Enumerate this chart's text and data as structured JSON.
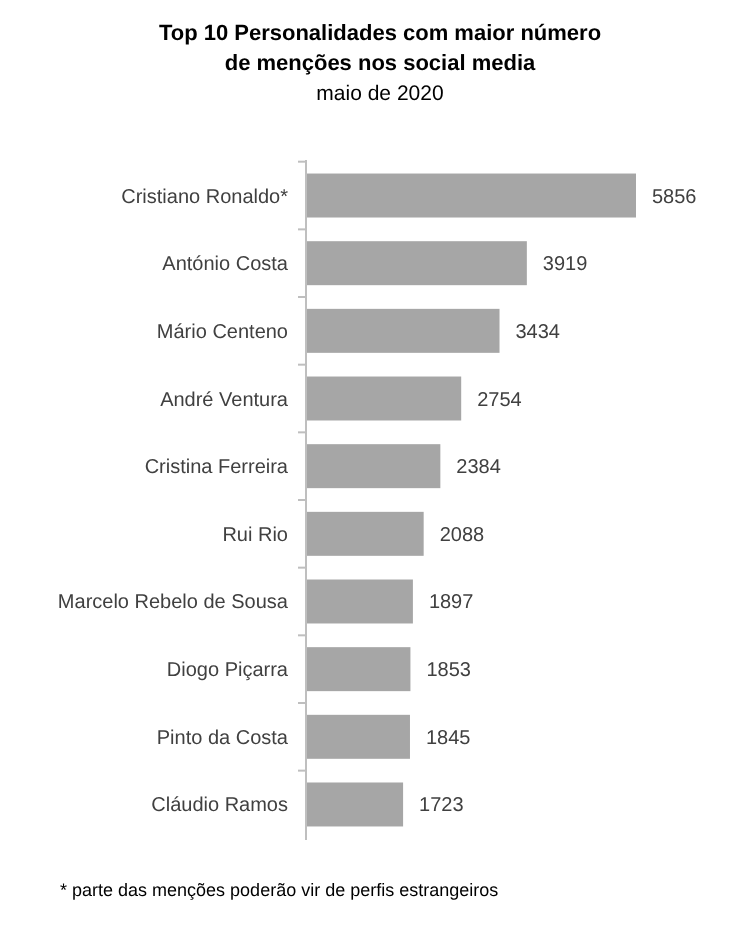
{
  "chart_data": {
    "type": "bar",
    "orientation": "horizontal",
    "title": "Top 10 Personalidades com maior número de menções nos social media",
    "subtitle": "maio de 2020",
    "categories": [
      "Cristiano Ronaldo*",
      "António Costa",
      "Mário Centeno",
      "André Ventura",
      "Cristina Ferreira",
      "Rui Rio",
      "Marcelo Rebelo de Sousa",
      "Diogo Piçarra",
      "Pinto da Costa",
      "Cláudio Ramos"
    ],
    "values": [
      5856,
      3919,
      3434,
      2754,
      2384,
      2088,
      1897,
      1853,
      1845,
      1723
    ],
    "color": "#a6a6a6",
    "data_labels": true,
    "annotations": [
      "* parte das menções poderão vir de perfis estrangeiros"
    ]
  }
}
